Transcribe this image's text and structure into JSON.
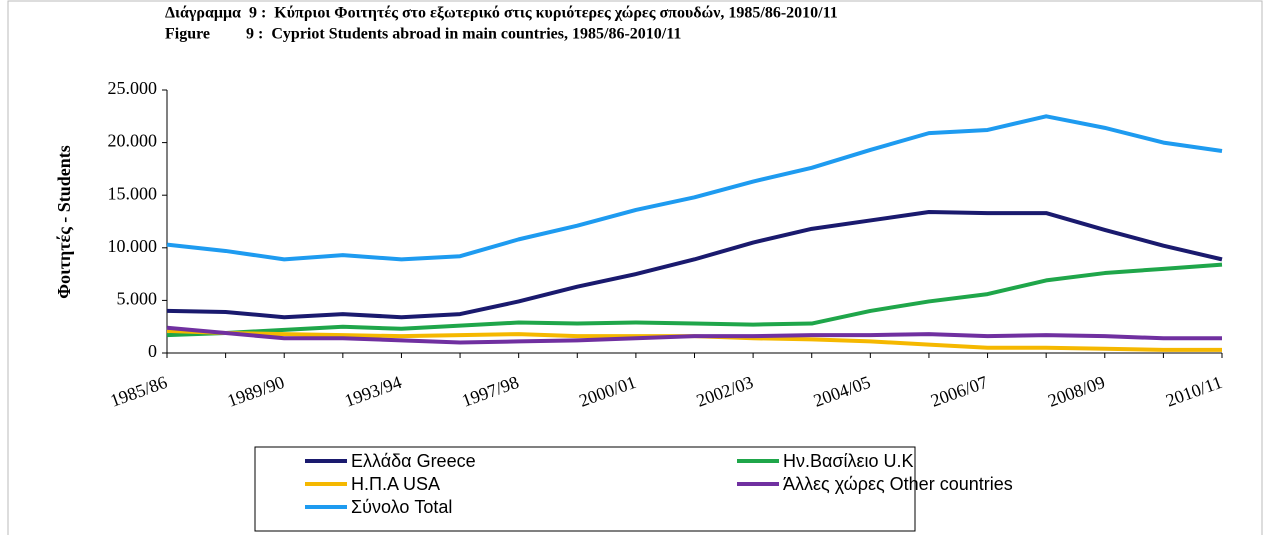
{
  "chart_data": {
    "type": "line",
    "title": "Διάγραμμα  9 :  Κύπριοι Φοιτητές στο εξωτερικό στις κυριότερες χώρες σπουδών, 1985/86-2010/11",
    "subtitle": "Figure         9 :  Cypriot Students abroad in main countries, 1985/86-2010/11",
    "y_label": "Φοιτητές - Students",
    "categories": [
      "1985/86",
      null,
      "1989/90",
      null,
      "1993/94",
      null,
      "1997/98",
      null,
      "2000/01",
      null,
      "2002/03",
      null,
      "2004/05",
      null,
      "2006/07",
      null,
      "2008/09",
      null,
      "2010/11"
    ],
    "series": [
      {
        "name": "Ελλάδα Greece",
        "color": "#1a1a6e",
        "values": [
          4000,
          3900,
          3400,
          3700,
          3400,
          3700,
          4900,
          6300,
          7500,
          8900,
          10500,
          11800,
          12600,
          13400,
          13300,
          13300,
          11700,
          10200,
          8900
        ]
      },
      {
        "name": "Ην.Βασίλειο U.K",
        "color": "#1fa64a",
        "values": [
          1700,
          1900,
          2200,
          2500,
          2300,
          2600,
          2900,
          2800,
          2900,
          2800,
          2700,
          2800,
          4000,
          4900,
          5600,
          6900,
          7600,
          8000,
          8400
        ]
      },
      {
        "name": "Η.Π.Α USA",
        "color": "#f5b800",
        "values": [
          2100,
          1900,
          1800,
          1700,
          1600,
          1700,
          1800,
          1600,
          1600,
          1600,
          1400,
          1300,
          1100,
          800,
          500,
          500,
          400,
          300,
          300
        ]
      },
      {
        "name": "Άλλες χώρες Other countries",
        "color": "#7030a0",
        "values": [
          2400,
          1900,
          1400,
          1400,
          1200,
          1000,
          1100,
          1200,
          1400,
          1600,
          1600,
          1700,
          1700,
          1800,
          1600,
          1700,
          1600,
          1400,
          1400
        ]
      },
      {
        "name": "Σύνολο Total",
        "color": "#1e9bf0",
        "values": [
          10300,
          9700,
          8900,
          9300,
          8900,
          9200,
          10800,
          12100,
          13600,
          14800,
          16300,
          17600,
          19300,
          20900,
          21200,
          22500,
          21400,
          20000,
          19200
        ]
      }
    ],
    "ylim": [
      0,
      25000
    ],
    "yticks": [
      0,
      {
        "value": 5000,
        "label": "5.000"
      },
      {
        "value": 10000,
        "label": "10.000"
      },
      {
        "value": 15000,
        "label": "15.000"
      },
      {
        "value": 20000,
        "label": "20.000"
      },
      {
        "value": 25000,
        "label": "25.000"
      }
    ],
    "grid": false,
    "legend": "bottom"
  }
}
